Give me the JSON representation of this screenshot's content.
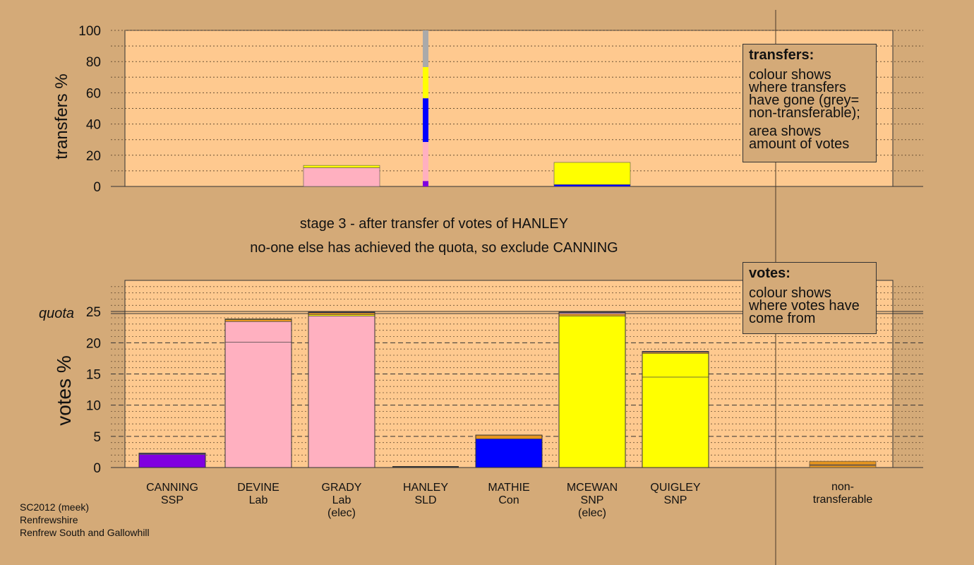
{
  "stage": {
    "line1": "stage 3 - after transfer of votes of HANLEY",
    "line2": "no-one else has achieved the quota, so exclude CANNING"
  },
  "legend_transfers": {
    "title": "transfers:",
    "text1": "colour shows where transfers have gone (grey= non-transferable);",
    "text2": "area shows amount of votes"
  },
  "legend_votes": {
    "title": "votes:",
    "text1": "colour shows where votes have come from"
  },
  "footer": {
    "line1": "SC2012 (meek)",
    "line2": "Renfrewshire",
    "line3": "Renfrew South and Gallowhill"
  },
  "colors": {
    "background": "#d4aa78",
    "plot_bg": "#fec98f",
    "SSP": "#8000e0",
    "Lab": "#ffb0c0",
    "SLD": "#ffb000",
    "Con": "#0000ff",
    "SNP": "#ffff00",
    "nontransferable": "#aaaaaa",
    "orange": "#e59520"
  },
  "chart_data": [
    {
      "type": "bar",
      "title": "",
      "ylabel": "transfers %",
      "ylim": [
        0,
        100
      ],
      "yticks": [
        0,
        20,
        40,
        60,
        80,
        100
      ],
      "categories": [
        "CANNING",
        "DEVINE",
        "GRADY",
        "HANLEY",
        "MATHIE",
        "MCEWAN",
        "QUIGLEY"
      ],
      "bars": [
        {
          "category": "GRADY",
          "segments": [
            {
              "color_key": "Lab",
              "value": 12.0
            },
            {
              "color_key": "SNP",
              "value": 1.5
            }
          ]
        },
        {
          "category": "MCEWAN",
          "segments": [
            {
              "color_key": "Con",
              "value": 1.2
            },
            {
              "color_key": "SNP",
              "value": 14.2
            }
          ]
        }
      ],
      "hanley_transfers": [
        {
          "color_key": "SSP",
          "value": 3.5
        },
        {
          "color_key": "Lab",
          "value": 25.0
        },
        {
          "color_key": "Con",
          "value": 28.0
        },
        {
          "color_key": "SNP",
          "value": 20.0
        },
        {
          "color_key": "nontransferable",
          "value": 23.5
        }
      ]
    },
    {
      "type": "bar",
      "title": "",
      "ylabel": "votes %",
      "ylim": [
        0,
        30
      ],
      "yticks": [
        0,
        5,
        10,
        15,
        20,
        25
      ],
      "quota": 24.9,
      "quota_label": "quota",
      "candidates": [
        {
          "name": "CANNING",
          "party": "SSP",
          "note": "",
          "total": 2.3,
          "segments": [
            {
              "color_key": "SSP",
              "value": 2.1
            },
            {
              "color_key": "Lab",
              "value": 0.1
            },
            {
              "color_key": "Con",
              "value": 0.1
            }
          ]
        },
        {
          "name": "DEVINE",
          "party": "Lab",
          "note": "",
          "total": 23.8,
          "segments": [
            {
              "color_key": "Lab",
              "value": 20.1
            },
            {
              "color_key": "Lab",
              "value": 3.3
            },
            {
              "color_key": "orange",
              "value": 0.3
            },
            {
              "color_key": "SNP",
              "value": 0.1
            }
          ]
        },
        {
          "name": "GRADY",
          "party": "Lab",
          "note": "(elec)",
          "total": 24.9,
          "segments": [
            {
              "color_key": "Lab",
              "value": 24.3
            },
            {
              "color_key": "SNP",
              "value": 0.2
            },
            {
              "color_key": "orange",
              "value": 0.3
            },
            {
              "color_key": "Con",
              "value": 0.1
            }
          ]
        },
        {
          "name": "HANLEY",
          "party": "SLD",
          "note": "",
          "total": 0,
          "segments": []
        },
        {
          "name": "MATHIE",
          "party": "Con",
          "note": "",
          "total": 5.2,
          "segments": [
            {
              "color_key": "Con",
              "value": 4.6
            },
            {
              "color_key": "orange",
              "value": 0.6
            }
          ]
        },
        {
          "name": "MCEWAN",
          "party": "SNP",
          "note": "(elec)",
          "total": 24.9,
          "segments": [
            {
              "color_key": "SNP",
              "value": 24.3
            },
            {
              "color_key": "orange",
              "value": 0.3
            },
            {
              "color_key": "Lab",
              "value": 0.2
            },
            {
              "color_key": "Con",
              "value": 0.1
            }
          ]
        },
        {
          "name": "QUIGLEY",
          "party": "SNP",
          "note": "",
          "total": 18.6,
          "segments": [
            {
              "color_key": "SNP",
              "value": 14.5
            },
            {
              "color_key": "SNP",
              "value": 3.8
            },
            {
              "color_key": "orange",
              "value": 0.2
            },
            {
              "color_key": "Con",
              "value": 0.1
            }
          ]
        }
      ],
      "nontransferable": {
        "label1": "non-",
        "label2": "transferable",
        "total": 1.0,
        "segments": [
          {
            "color_key": "orange",
            "value": 0.35
          },
          {
            "color_key": "Lab",
            "value": 0.1
          },
          {
            "color_key": "orange",
            "value": 0.55
          }
        ]
      }
    }
  ]
}
